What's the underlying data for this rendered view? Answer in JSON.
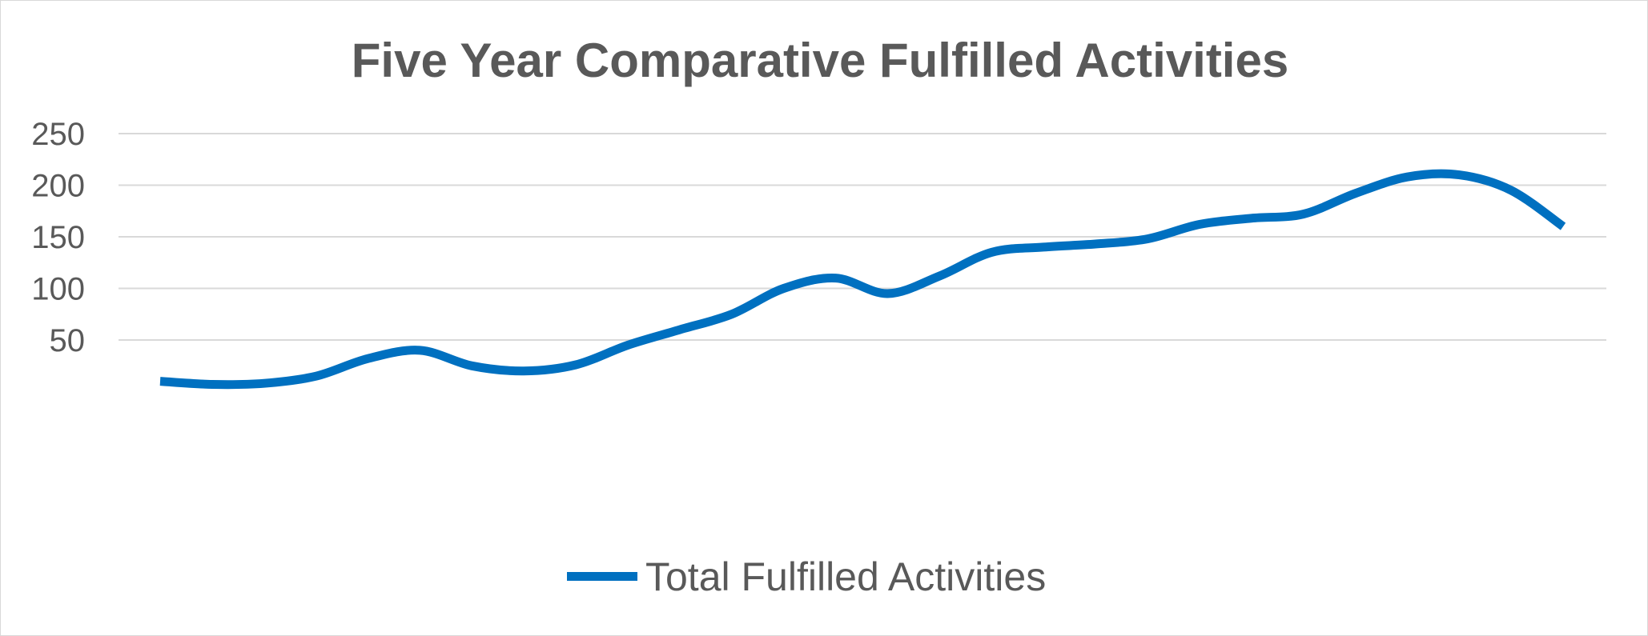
{
  "chart_data": {
    "type": "line",
    "title": "Five Year Comparative Fulfilled Activities",
    "xlabel": "",
    "ylabel": "",
    "ylim": [
      -50,
      250
    ],
    "yticks": [
      50,
      100,
      150,
      200,
      250
    ],
    "grid": true,
    "legend_position": "bottom",
    "series": [
      {
        "name": "Total Fulfilled Activities",
        "color": "#0070C0",
        "values": [
          10,
          7,
          8,
          15,
          32,
          40,
          25,
          20,
          26,
          45,
          60,
          75,
          100,
          110,
          95,
          112,
          135,
          140,
          143,
          148,
          162,
          168,
          172,
          192,
          208,
          210,
          195,
          160
        ]
      }
    ]
  }
}
